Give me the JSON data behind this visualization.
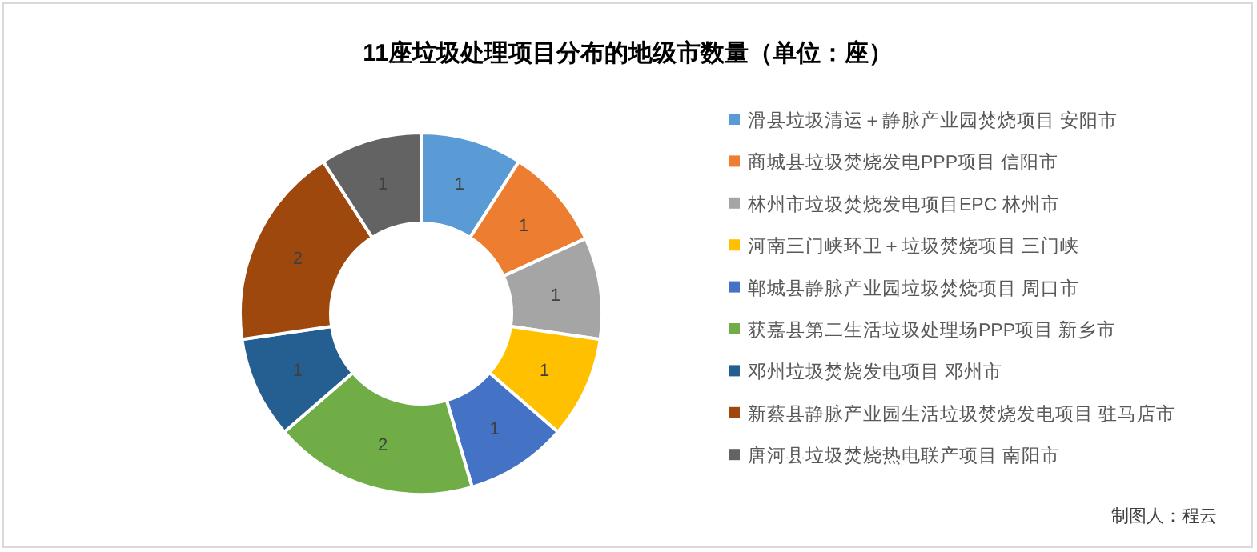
{
  "chart_data": {
    "type": "donut",
    "title": "11座垃圾处理项目分布的地级市数量（单位：座）",
    "categories": [
      "滑县垃圾清运＋静脉产业园焚烧项目 安阳市",
      "商城县垃圾焚烧发电PPP项目 信阳市",
      "林州市垃圾焚烧发电项目EPC 林州市",
      "河南三门峡环卫＋垃圾焚烧项目 三门峡",
      "郸城县静脉产业园垃圾焚烧项目 周口市",
      "获嘉县第二生活垃圾处理场PPP项目 新乡市",
      "邓州垃圾焚烧发电项目 邓州市",
      "新蔡县静脉产业园生活垃圾焚烧发电项目 驻马店市",
      "唐河县垃圾焚烧热电联产项目 南阳市"
    ],
    "values": [
      1,
      1,
      1,
      1,
      1,
      2,
      1,
      2,
      1
    ],
    "colors": [
      "#5b9bd5",
      "#ed7d31",
      "#a5a5a5",
      "#ffc000",
      "#4472c4",
      "#70ad47",
      "#255e91",
      "#9e480e",
      "#636363"
    ],
    "data_labels": true,
    "legend": "right",
    "annotations": [
      "制图人：程云"
    ]
  }
}
